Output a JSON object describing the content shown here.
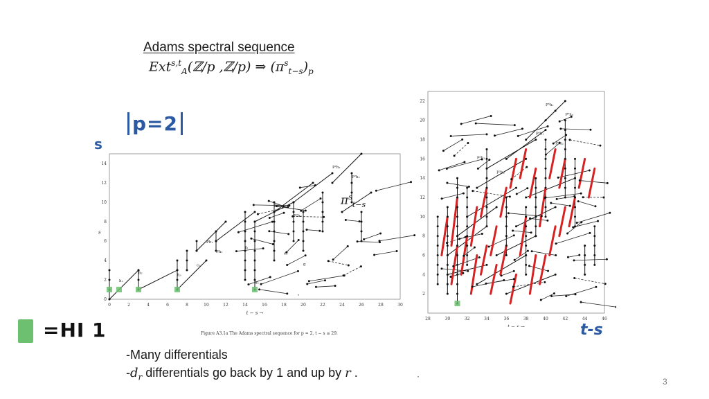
{
  "slide": {
    "title": "Adams spectral sequence",
    "formula": {
      "ext": "Ext",
      "ext_sup": "s,t",
      "ext_sub": "A",
      "args": "(ℤ/p ,ℤ/p) ⇒ (π",
      "pi_sup": "s",
      "pi_sub": "t−s",
      "close": ")",
      "p_sub": "p"
    },
    "bullets": {
      "line1": "-Many differentials",
      "line2_prefix": "-",
      "d": "d",
      "r_sub": "r",
      "line2_suffix": " differentials go back by 1 and up by ",
      "r": "r",
      "line2_tail": "  ."
    },
    "page_number": "3",
    "stray_dot": "·"
  },
  "annotations": {
    "p_equals": "p=2",
    "s_axis": "s",
    "t_minus_s_axis": "t-s",
    "hi_label": "=HI 1",
    "overlay_pi": "π",
    "overlay_pi_sup": "s",
    "overlay_pi_sub": "t−s"
  },
  "chart_data": [
    {
      "type": "scatter",
      "title": "",
      "xlabel": "t − s",
      "ylabel": "s",
      "x_ticks": [
        "0",
        "2",
        "4",
        "6",
        "8",
        "10",
        "12",
        "14",
        "16",
        "18",
        "20",
        "22",
        "24",
        "26",
        "28",
        "30"
      ],
      "y_ticks": [
        "0",
        "2",
        "4",
        "6",
        "8",
        "10",
        "12",
        "14"
      ],
      "xlim": [
        0,
        30
      ],
      "ylim": [
        0,
        15
      ],
      "caption": "Figure A3.1a   The Adams spectral sequence for p = 2, t − s ≤ 29.",
      "labels": [
        "P²h₁",
        "P²h₂",
        "P²h₁",
        "P²h₂",
        "Ph₁",
        "Ph₂",
        "h₁",
        "h₂",
        "h₃",
        "h₄",
        "c₀",
        "f₀",
        "e₀",
        "g"
      ],
      "highlight_color": "#6cc070"
    },
    {
      "type": "scatter",
      "title": "",
      "xlabel": "t − s",
      "ylabel": "",
      "x_ticks": [
        "28",
        "30",
        "32",
        "34",
        "36",
        "38",
        "40",
        "42",
        "44",
        "46"
      ],
      "y_ticks": [
        "2",
        "4",
        "6",
        "8",
        "10",
        "12",
        "14",
        "16",
        "18",
        "20",
        "22"
      ],
      "xlim": [
        28,
        46
      ],
      "ylim": [
        0,
        23
      ],
      "labels": [
        "P⁵h₁",
        "P⁵h₂",
        "P⁴h₁",
        "P⁴h₂",
        "P³h₁",
        "P³h₂"
      ],
      "differential_color": "#d62222",
      "highlight_color": "#6cc070"
    }
  ]
}
